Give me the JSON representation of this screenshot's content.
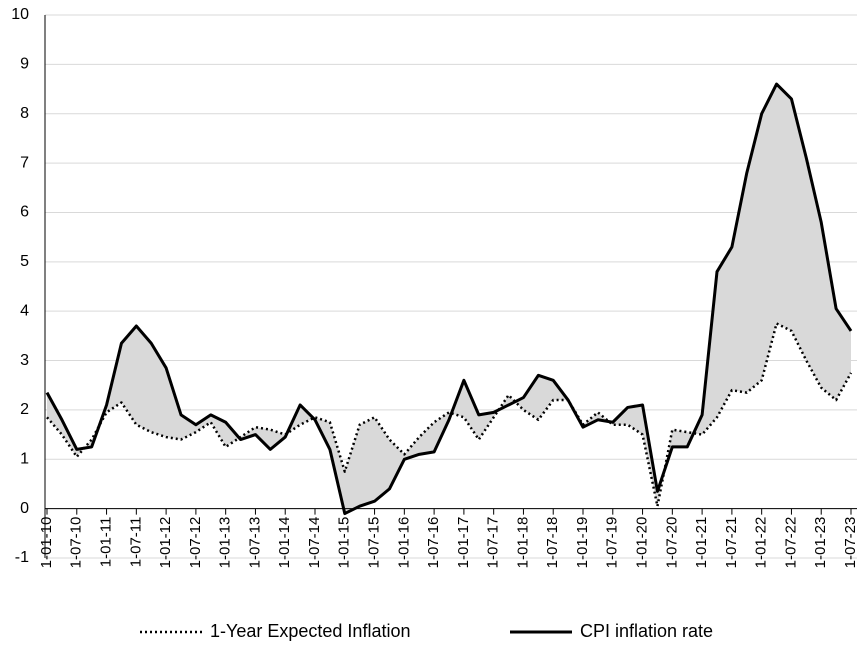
{
  "chart_data": {
    "type": "line",
    "categories": [
      "1-01-10",
      null,
      "1-07-10",
      null,
      "1-01-11",
      null,
      "1-07-11",
      null,
      "1-01-12",
      null,
      "1-07-12",
      null,
      "1-01-13",
      null,
      "1-07-13",
      null,
      "1-01-14",
      null,
      "1-07-14",
      null,
      "1-01-15",
      null,
      "1-07-15",
      null,
      "1-01-16",
      null,
      "1-07-16",
      null,
      "1-01-17",
      null,
      "1-07-17",
      null,
      "1-01-18",
      null,
      "1-07-18",
      null,
      "1-01-19",
      null,
      "1-07-19",
      null,
      "1-01-20",
      null,
      "1-07-20",
      null,
      "1-01-21",
      null,
      "1-07-21",
      null,
      "1-01-22",
      null,
      "1-07-22",
      null,
      "1-01-23",
      null,
      "1-07-23"
    ],
    "series": [
      {
        "name": "1-Year Expected Inflation",
        "color": "#000000",
        "dash": "dotted",
        "values": [
          1.85,
          1.5,
          1.05,
          1.4,
          1.95,
          2.15,
          1.7,
          1.55,
          1.45,
          1.4,
          1.55,
          1.75,
          1.25,
          1.45,
          1.65,
          1.6,
          1.5,
          1.7,
          1.85,
          1.75,
          0.75,
          1.7,
          1.85,
          1.4,
          1.1,
          1.45,
          1.75,
          1.95,
          1.85,
          1.4,
          1.85,
          2.3,
          2.0,
          1.8,
          2.2,
          2.2,
          1.7,
          1.95,
          1.7,
          1.7,
          1.5,
          0.05,
          1.6,
          1.55,
          1.5,
          1.85,
          2.4,
          2.35,
          2.6,
          3.75,
          3.6,
          3.0,
          2.45,
          2.2,
          2.75
        ]
      },
      {
        "name": "CPI inflation rate",
        "color": "#000000",
        "dash": "solid",
        "values": [
          2.35,
          1.8,
          1.2,
          1.25,
          2.1,
          3.35,
          3.7,
          3.35,
          2.85,
          1.9,
          1.7,
          1.9,
          1.75,
          1.4,
          1.5,
          1.2,
          1.45,
          2.1,
          1.8,
          1.2,
          -0.1,
          0.05,
          0.15,
          0.4,
          1.0,
          1.1,
          1.15,
          1.8,
          2.6,
          1.9,
          1.95,
          2.1,
          2.25,
          2.7,
          2.6,
          2.2,
          1.65,
          1.8,
          1.75,
          2.05,
          2.1,
          0.35,
          1.25,
          1.25,
          1.9,
          4.8,
          5.3,
          6.8,
          8.0,
          8.6,
          8.3,
          7.1,
          5.8,
          4.05,
          3.6
        ]
      }
    ],
    "fill_between": "#d9d9d9",
    "ylim": [
      -1,
      10
    ],
    "yticks": [
      -1,
      0,
      1,
      2,
      3,
      4,
      5,
      6,
      7,
      8,
      9,
      10
    ],
    "grid": true,
    "legend": "bottom"
  }
}
